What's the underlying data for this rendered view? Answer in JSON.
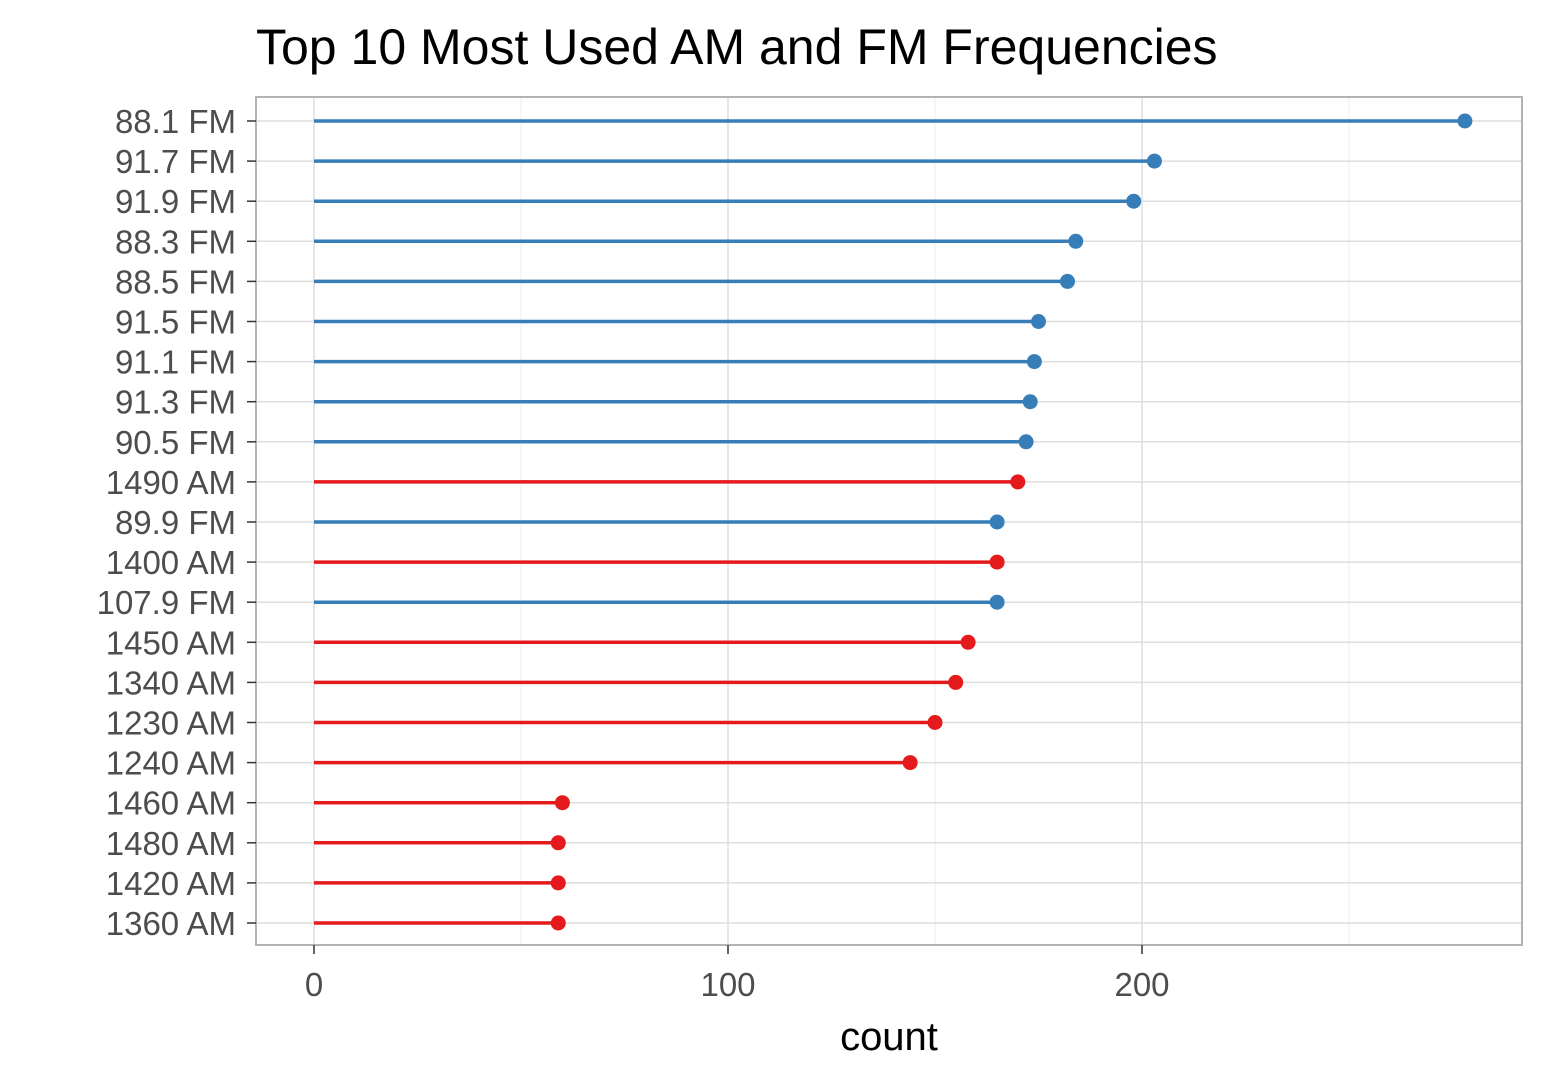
{
  "chart_data": {
    "type": "lollipop",
    "title": "Top 10 Most Used AM and FM Frequencies",
    "xlabel": "count",
    "ylabel": "",
    "xlim": [
      -14,
      292
    ],
    "x_ticks": [
      0,
      100,
      200
    ],
    "grid": true,
    "legend": "none",
    "colors": {
      "FM": "#377eb8",
      "AM": "#e41a1c"
    },
    "categories": [
      "88.1 FM",
      "91.7 FM",
      "91.9 FM",
      "88.3 FM",
      "88.5 FM",
      "91.5 FM",
      "91.1 FM",
      "91.3 FM",
      "90.5 FM",
      "1490 AM",
      "89.9 FM",
      "1400 AM",
      "107.9 FM",
      "1450 AM",
      "1340 AM",
      "1230 AM",
      "1240 AM",
      "1460 AM",
      "1480 AM",
      "1420 AM",
      "1360 AM"
    ],
    "bands": [
      "FM",
      "FM",
      "FM",
      "FM",
      "FM",
      "FM",
      "FM",
      "FM",
      "FM",
      "AM",
      "FM",
      "AM",
      "FM",
      "AM",
      "AM",
      "AM",
      "AM",
      "AM",
      "AM",
      "AM",
      "AM"
    ],
    "values": [
      278,
      203,
      198,
      184,
      182,
      175,
      174,
      173,
      172,
      170,
      165,
      165,
      165,
      158,
      155,
      150,
      144,
      60,
      59,
      59,
      59
    ]
  }
}
